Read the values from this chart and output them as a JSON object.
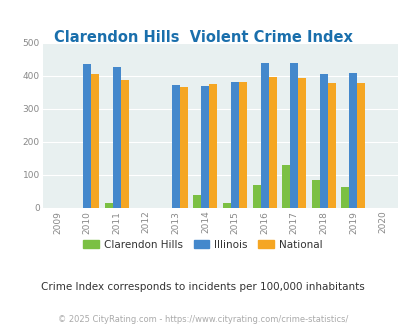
{
  "title": "Clarendon Hills  Violent Crime Index",
  "years": [
    2009,
    2010,
    2011,
    2012,
    2013,
    2014,
    2015,
    2016,
    2017,
    2018,
    2019,
    2020
  ],
  "data_years": [
    2010,
    2011,
    2013,
    2014,
    2015,
    2016,
    2017,
    2018,
    2019
  ],
  "clarendon_hills": [
    0,
    15,
    0,
    40,
    15,
    70,
    130,
    85,
    63
  ],
  "illinois": [
    435,
    428,
    372,
    368,
    383,
    438,
    438,
    405,
    408
  ],
  "national": [
    405,
    387,
    366,
    375,
    383,
    397,
    394,
    379,
    379
  ],
  "bar_color_ch": "#7bc043",
  "bar_color_il": "#4488cc",
  "bar_color_na": "#f5a623",
  "bg_color": "#e8f0f0",
  "ylabel_color": "#888888",
  "xlabel_color": "#888888",
  "title_color": "#1a6fac",
  "legend_label_color": "#333333",
  "subtitle_color": "#333333",
  "footer_color": "#aaaaaa",
  "subtitle": "Crime Index corresponds to incidents per 100,000 inhabitants",
  "footer": "© 2025 CityRating.com - https://www.cityrating.com/crime-statistics/",
  "ylim": [
    0,
    500
  ],
  "yticks": [
    0,
    100,
    200,
    300,
    400,
    500
  ],
  "bar_width": 0.27
}
